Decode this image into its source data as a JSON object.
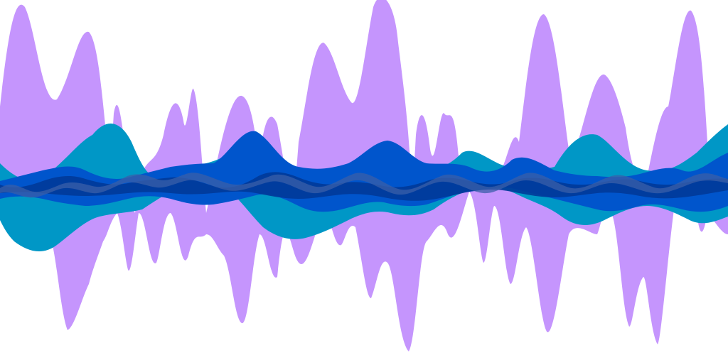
{
  "artwork": {
    "kind": "abstract-waveform",
    "background": "#ffffff",
    "layers": [
      {
        "name": "violet-band",
        "color": "#c595fd"
      },
      {
        "name": "teal-band",
        "color": "#0097c6"
      },
      {
        "name": "royal-blue-band",
        "color": "#0055cc"
      },
      {
        "name": "navy-band",
        "color": "#003a99"
      },
      {
        "name": "slate-blue-band",
        "color": "#3a5fa8"
      }
    ]
  }
}
